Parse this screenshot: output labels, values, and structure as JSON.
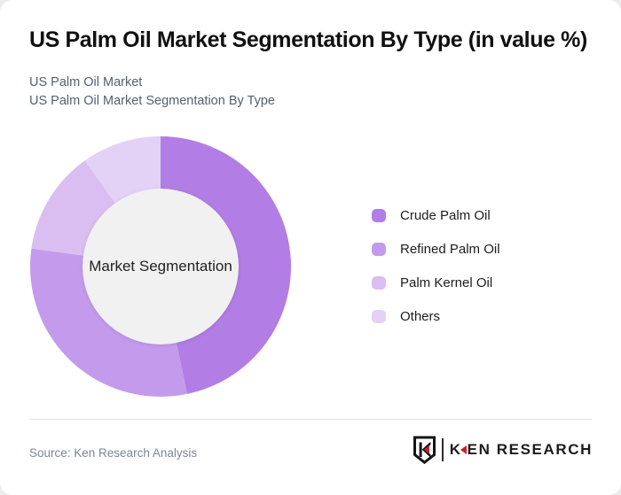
{
  "page": {
    "background_color": "#ececec",
    "card_background": "#ffffff"
  },
  "header": {
    "title": "US Palm Oil Market Segmentation By Type (in value %)",
    "subtitle_line1": "US Palm Oil Market",
    "subtitle_line2": "US Palm Oil Market Segmentation By Type"
  },
  "chart_data": {
    "type": "pie",
    "variant": "donut",
    "title": "US Palm Oil Market Segmentation By Type (in value %)",
    "center_label": "Market Segmentation",
    "categories": [
      "Crude Palm Oil",
      "Refined Palm Oil",
      "Palm Kernel Oil",
      "Others"
    ],
    "values": [
      46.7,
      30.5,
      12.9,
      9.9
    ],
    "unit": "percent of market value (labels not shown on chart)",
    "colors": [
      "#b27de5",
      "#c49bec",
      "#dabef2",
      "#e3d1f6"
    ],
    "start_angle_deg": 0,
    "direction": "clockwise",
    "legend_position": "right",
    "hole_color": "#f1f1f1"
  },
  "footer": {
    "source_text": "Source: Ken Research Analysis",
    "brand": {
      "emblem_letter": "K",
      "name_prefix": "K",
      "name_suffix": "EN RESEARCH",
      "accent_color": "#c5222a"
    }
  }
}
